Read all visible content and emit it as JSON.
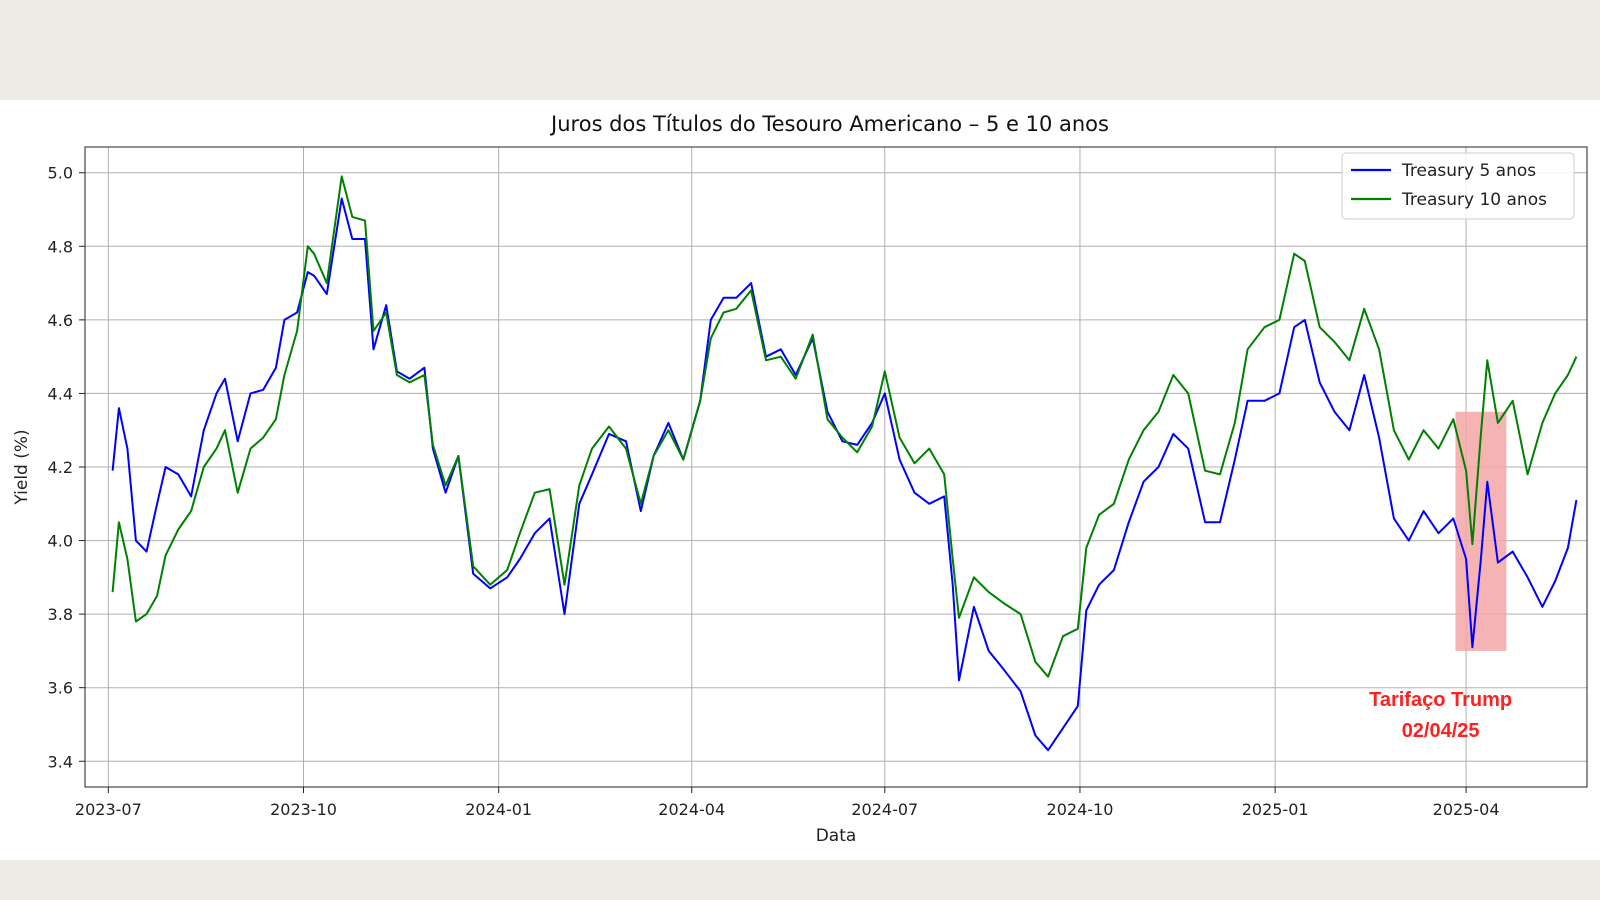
{
  "chart_data": {
    "type": "line",
    "title": "Juros dos Títulos do Tesouro Americano – 5 e 10 anos",
    "xlabel": "Data",
    "ylabel": "Yield (%)",
    "x_tick_labels": [
      "2023-07",
      "2023-10",
      "2024-01",
      "2024-04",
      "2024-07",
      "2024-10",
      "2025-01",
      "2025-04"
    ],
    "x_tick_dates": [
      "2023-07-01",
      "2023-10-01",
      "2024-01-01",
      "2024-04-01",
      "2024-07-01",
      "2024-10-01",
      "2025-01-01",
      "2025-04-01"
    ],
    "xlim": [
      "2023-06-20",
      "2025-05-28"
    ],
    "y_ticks": [
      3.4,
      3.6,
      3.8,
      4.0,
      4.2,
      4.4,
      4.6,
      4.8,
      5.0
    ],
    "ylim": [
      3.33,
      5.07
    ],
    "grid": true,
    "legend": "top-right",
    "x": [
      "2023-07-03",
      "2023-07-06",
      "2023-07-10",
      "2023-07-14",
      "2023-07-19",
      "2023-07-24",
      "2023-07-28",
      "2023-08-03",
      "2023-08-09",
      "2023-08-15",
      "2023-08-21",
      "2023-08-25",
      "2023-08-31",
      "2023-09-06",
      "2023-09-12",
      "2023-09-18",
      "2023-09-22",
      "2023-09-28",
      "2023-10-03",
      "2023-10-06",
      "2023-10-12",
      "2023-10-19",
      "2023-10-24",
      "2023-10-30",
      "2023-11-03",
      "2023-11-09",
      "2023-11-14",
      "2023-11-20",
      "2023-11-27",
      "2023-12-01",
      "2023-12-07",
      "2023-12-13",
      "2023-12-20",
      "2023-12-28",
      "2024-01-05",
      "2024-01-11",
      "2024-01-18",
      "2024-01-25",
      "2024-02-01",
      "2024-02-08",
      "2024-02-14",
      "2024-02-22",
      "2024-03-01",
      "2024-03-08",
      "2024-03-14",
      "2024-03-21",
      "2024-03-28",
      "2024-04-05",
      "2024-04-10",
      "2024-04-16",
      "2024-04-22",
      "2024-04-29",
      "2024-05-06",
      "2024-05-13",
      "2024-05-20",
      "2024-05-28",
      "2024-06-04",
      "2024-06-11",
      "2024-06-18",
      "2024-06-25",
      "2024-07-01",
      "2024-07-08",
      "2024-07-15",
      "2024-07-22",
      "2024-07-29",
      "2024-08-02",
      "2024-08-05",
      "2024-08-12",
      "2024-08-19",
      "2024-08-26",
      "2024-09-03",
      "2024-09-10",
      "2024-09-16",
      "2024-09-23",
      "2024-09-30",
      "2024-10-04",
      "2024-10-10",
      "2024-10-17",
      "2024-10-24",
      "2024-10-31",
      "2024-11-07",
      "2024-11-14",
      "2024-11-21",
      "2024-11-29",
      "2024-12-06",
      "2024-12-13",
      "2024-12-19",
      "2024-12-27",
      "2025-01-03",
      "2025-01-10",
      "2025-01-15",
      "2025-01-22",
      "2025-01-29",
      "2025-02-05",
      "2025-02-12",
      "2025-02-19",
      "2025-02-26",
      "2025-03-05",
      "2025-03-12",
      "2025-03-19",
      "2025-03-26",
      "2025-04-01",
      "2025-04-04",
      "2025-04-08",
      "2025-04-11",
      "2025-04-16",
      "2025-04-23",
      "2025-04-30",
      "2025-05-07",
      "2025-05-13",
      "2025-05-19",
      "2025-05-23"
    ],
    "series": [
      {
        "name": "Treasury 5 anos",
        "color": "#0000ff",
        "values": [
          4.19,
          4.36,
          4.25,
          4.0,
          3.97,
          4.1,
          4.2,
          4.18,
          4.12,
          4.3,
          4.4,
          4.44,
          4.27,
          4.4,
          4.41,
          4.47,
          4.6,
          4.62,
          4.73,
          4.72,
          4.67,
          4.93,
          4.82,
          4.82,
          4.52,
          4.64,
          4.46,
          4.44,
          4.47,
          4.25,
          4.13,
          4.23,
          3.91,
          3.87,
          3.9,
          3.95,
          4.02,
          4.06,
          3.8,
          4.1,
          4.18,
          4.29,
          4.27,
          4.08,
          4.23,
          4.32,
          4.22,
          4.38,
          4.6,
          4.66,
          4.66,
          4.7,
          4.5,
          4.52,
          4.45,
          4.55,
          4.35,
          4.27,
          4.26,
          4.32,
          4.4,
          4.22,
          4.13,
          4.1,
          4.12,
          3.88,
          3.62,
          3.82,
          3.7,
          3.65,
          3.59,
          3.47,
          3.43,
          3.49,
          3.55,
          3.81,
          3.88,
          3.92,
          4.05,
          4.16,
          4.2,
          4.29,
          4.25,
          4.05,
          4.05,
          4.22,
          4.38,
          4.38,
          4.4,
          4.58,
          4.6,
          4.43,
          4.35,
          4.3,
          4.45,
          4.28,
          4.06,
          4.0,
          4.08,
          4.02,
          4.06,
          3.95,
          3.71,
          3.95,
          4.16,
          3.94,
          3.97,
          3.9,
          3.82,
          3.89,
          3.98,
          4.11
        ]
      },
      {
        "name": "Treasury 10 anos",
        "color": "#008000",
        "values": [
          3.86,
          4.05,
          3.95,
          3.78,
          3.8,
          3.85,
          3.96,
          4.03,
          4.08,
          4.2,
          4.25,
          4.3,
          4.13,
          4.25,
          4.28,
          4.33,
          4.45,
          4.57,
          4.8,
          4.78,
          4.7,
          4.99,
          4.88,
          4.87,
          4.57,
          4.62,
          4.45,
          4.43,
          4.45,
          4.26,
          4.15,
          4.23,
          3.93,
          3.88,
          3.92,
          4.02,
          4.13,
          4.14,
          3.88,
          4.15,
          4.25,
          4.31,
          4.25,
          4.1,
          4.23,
          4.3,
          4.22,
          4.38,
          4.55,
          4.62,
          4.63,
          4.68,
          4.49,
          4.5,
          4.44,
          4.56,
          4.33,
          4.28,
          4.24,
          4.31,
          4.46,
          4.28,
          4.21,
          4.25,
          4.18,
          3.95,
          3.79,
          3.9,
          3.86,
          3.83,
          3.8,
          3.67,
          3.63,
          3.74,
          3.76,
          3.98,
          4.07,
          4.1,
          4.22,
          4.3,
          4.35,
          4.45,
          4.4,
          4.19,
          4.18,
          4.32,
          4.52,
          4.58,
          4.6,
          4.78,
          4.76,
          4.58,
          4.54,
          4.49,
          4.63,
          4.52,
          4.3,
          4.22,
          4.3,
          4.25,
          4.33,
          4.19,
          3.99,
          4.29,
          4.49,
          4.32,
          4.38,
          4.18,
          4.32,
          4.4,
          4.45,
          4.5
        ]
      }
    ],
    "highlight": {
      "x_start": "2025-03-27",
      "x_end": "2025-04-20",
      "y_start": 3.7,
      "y_end": 4.35,
      "color": "#f4a6a6"
    },
    "annotation": {
      "lines": [
        "Tarifaço Trump",
        "02/04/25"
      ],
      "anchor_date": "2025-03-20",
      "anchor_y": 3.55,
      "color": "#ff2020"
    }
  }
}
